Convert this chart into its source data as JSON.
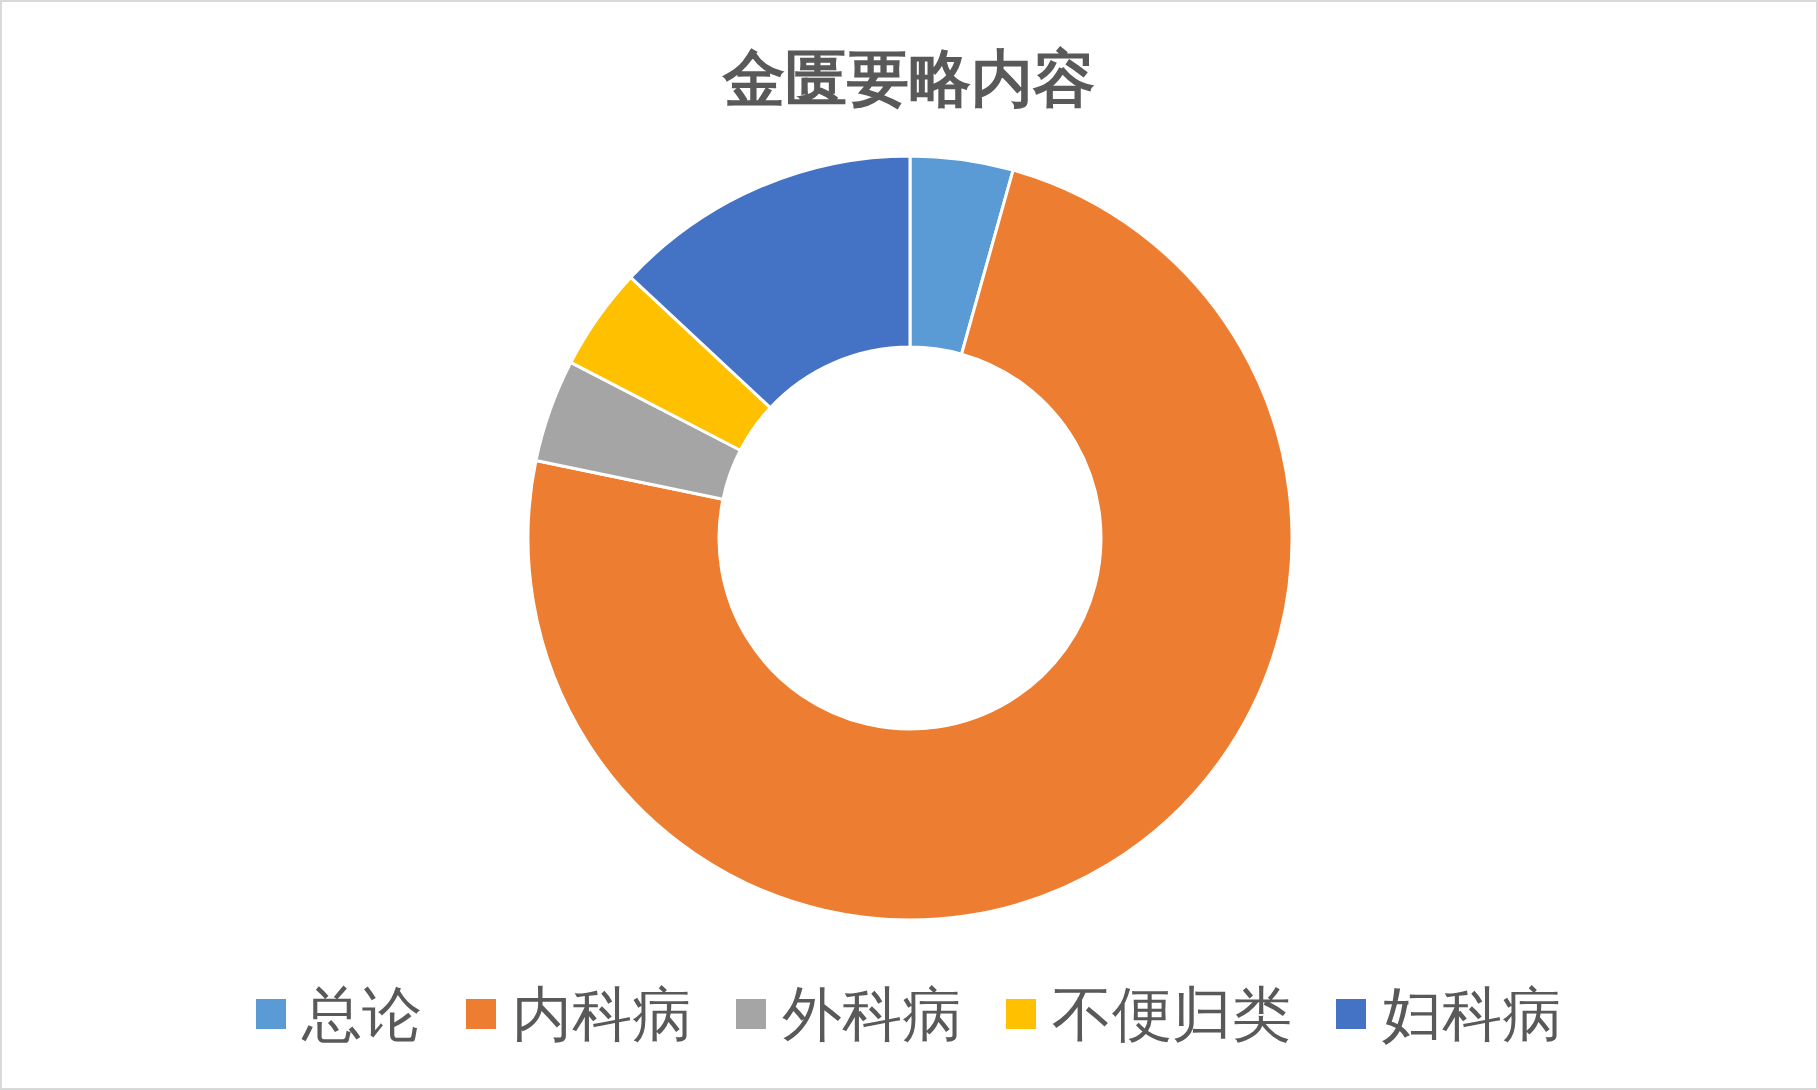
{
  "chart_data": {
    "type": "donut",
    "title": "金匮要略内容",
    "categories": [
      "总论",
      "内科病",
      "外科病",
      "不便归类",
      "妇科病"
    ],
    "values": [
      4.35,
      73.9,
      4.35,
      4.35,
      13.05
    ],
    "colors": [
      "#5b9bd5",
      "#ed7d31",
      "#a5a5a5",
      "#ffc000",
      "#4472c4"
    ],
    "legend": "bottom"
  }
}
